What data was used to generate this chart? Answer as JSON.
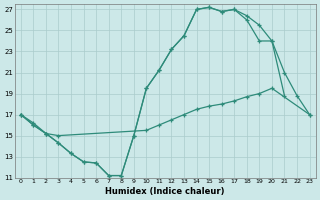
{
  "xlabel": "Humidex (Indice chaleur)",
  "bg_color": "#cce8e8",
  "grid_color": "#aacccc",
  "line_color": "#2e8b7a",
  "xlim": [
    -0.5,
    23.5
  ],
  "ylim": [
    11,
    27.5
  ],
  "xticks": [
    0,
    1,
    2,
    3,
    4,
    5,
    6,
    7,
    8,
    9,
    10,
    11,
    12,
    13,
    14,
    15,
    16,
    17,
    18,
    19,
    20,
    21,
    22,
    23
  ],
  "yticks": [
    11,
    13,
    15,
    17,
    19,
    21,
    23,
    25,
    27
  ],
  "line1_x": [
    0,
    1,
    2,
    3,
    4,
    5,
    6,
    7,
    8,
    9,
    10,
    11,
    12,
    13,
    14,
    15,
    16,
    17,
    18,
    19,
    20,
    21
  ],
  "line1_y": [
    17,
    16,
    15.2,
    14.3,
    13.3,
    12.5,
    12.4,
    11.2,
    11.2,
    15.0,
    19.5,
    21.2,
    23.2,
    24.5,
    27.0,
    27.2,
    26.8,
    27.0,
    26.4,
    25.5,
    24.0,
    18.8
  ],
  "line2_x": [
    0,
    1,
    2,
    3,
    10,
    11,
    12,
    13,
    14,
    15,
    16,
    17,
    18,
    19,
    20,
    23
  ],
  "line2_y": [
    17,
    16.2,
    15.2,
    15.0,
    15.5,
    16.0,
    16.5,
    17.0,
    17.5,
    17.8,
    18.0,
    18.3,
    18.7,
    19.0,
    19.5,
    17.0
  ],
  "line3_x": [
    0,
    1,
    2,
    3,
    4,
    5,
    6,
    7,
    8,
    9,
    10,
    11,
    12,
    13,
    14,
    15,
    16,
    17,
    18,
    19,
    20,
    21,
    22,
    23
  ],
  "line3_y": [
    17,
    16,
    15.2,
    14.3,
    13.3,
    12.5,
    12.4,
    11.2,
    11.2,
    15.0,
    19.5,
    21.2,
    23.2,
    24.5,
    27.0,
    27.2,
    26.8,
    27.0,
    26.0,
    24.0,
    24.0,
    21.0,
    18.8,
    17.0
  ]
}
